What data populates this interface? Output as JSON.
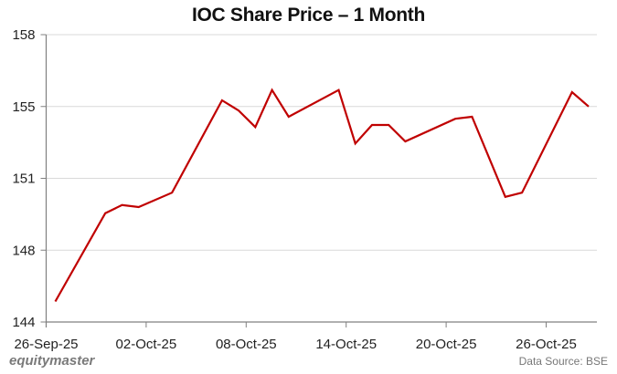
{
  "header": {
    "title": "IOC Share Price – 1 Month"
  },
  "footer": {
    "brand": "equitymaster",
    "source": "Data Source: BSE"
  },
  "colors": {
    "line": "#c00000",
    "grid": "#d9d9d9",
    "axis": "#808080"
  },
  "chart_data": {
    "type": "line",
    "title": "IOC Share Price – 1 Month",
    "xlabel": "",
    "ylabel": "",
    "ylim": [
      144,
      158
    ],
    "yticks": [
      144,
      148,
      151,
      155,
      158
    ],
    "xticks": [
      "26-Sep-25",
      "02-Oct-25",
      "08-Oct-25",
      "14-Oct-25",
      "20-Oct-25",
      "26-Oct-25"
    ],
    "grid": "horizontal",
    "legend": "none",
    "series": [
      {
        "name": "IOC",
        "x": [
          "26-Sep-25",
          "29-Sep-25",
          "30-Sep-25",
          "01-Oct-25",
          "03-Oct-25",
          "06-Oct-25",
          "07-Oct-25",
          "08-Oct-25",
          "09-Oct-25",
          "10-Oct-25",
          "13-Oct-25",
          "14-Oct-25",
          "15-Oct-25",
          "16-Oct-25",
          "17-Oct-25",
          "20-Oct-25",
          "21-Oct-25",
          "23-Oct-25",
          "24-Oct-25",
          "27-Oct-25",
          "28-Oct-25"
        ],
        "values": [
          145.0,
          149.3,
          149.7,
          149.6,
          150.3,
          154.8,
          154.3,
          153.5,
          155.3,
          154.0,
          155.3,
          152.7,
          153.6,
          153.6,
          152.8,
          153.9,
          154.0,
          150.1,
          150.3,
          155.2,
          154.5
        ]
      }
    ]
  }
}
